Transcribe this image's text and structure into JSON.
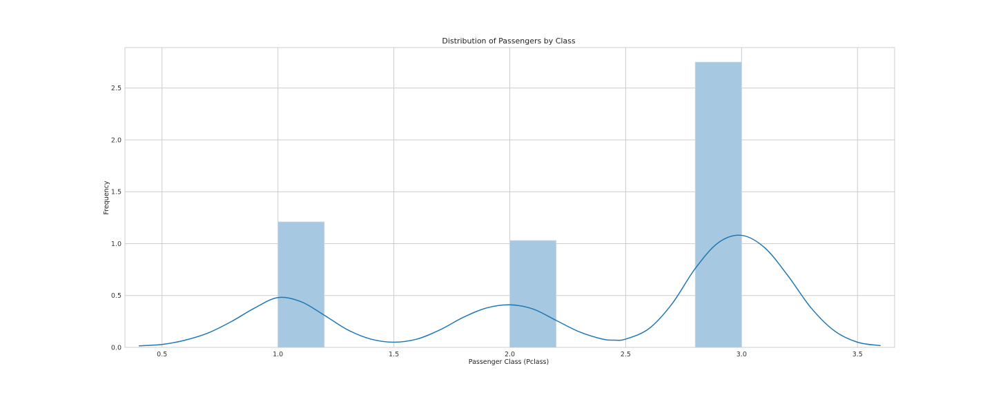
{
  "chart_data": {
    "type": "bar",
    "title": "Distribution of Passengers by Class",
    "xlabel": "Passenger Class (Pclass)",
    "ylabel": "Frequency",
    "xlim": [
      0.34,
      3.66
    ],
    "ylim": [
      0,
      2.89
    ],
    "xticks": [
      0.5,
      1.0,
      1.5,
      2.0,
      2.5,
      3.0,
      3.5
    ],
    "xtick_labels": [
      "0.5",
      "1.0",
      "1.5",
      "2.0",
      "2.5",
      "3.0",
      "3.5"
    ],
    "yticks": [
      0.0,
      0.5,
      1.0,
      1.5,
      2.0,
      2.5
    ],
    "ytick_labels": [
      "0.0",
      "0.5",
      "1.0",
      "1.5",
      "2.0",
      "2.5"
    ],
    "grid": true,
    "histogram": {
      "bins": [
        {
          "start": 1.0,
          "end": 1.2,
          "value": 1.21
        },
        {
          "start": 2.0,
          "end": 2.2,
          "value": 1.03
        },
        {
          "start": 2.8,
          "end": 3.0,
          "value": 2.75
        }
      ],
      "color": "#a6c8e0"
    },
    "kde": {
      "color": "#1f77b4",
      "x": [
        0.4,
        0.5,
        0.6,
        0.7,
        0.8,
        0.9,
        1.0,
        1.1,
        1.2,
        1.3,
        1.4,
        1.5,
        1.6,
        1.7,
        1.8,
        1.9,
        2.0,
        2.1,
        2.2,
        2.3,
        2.4,
        2.45,
        2.5,
        2.6,
        2.7,
        2.8,
        2.9,
        3.0,
        3.1,
        3.2,
        3.3,
        3.4,
        3.5,
        3.6
      ],
      "y": [
        0.015,
        0.028,
        0.07,
        0.14,
        0.25,
        0.38,
        0.48,
        0.44,
        0.31,
        0.17,
        0.08,
        0.05,
        0.08,
        0.17,
        0.29,
        0.38,
        0.41,
        0.37,
        0.26,
        0.15,
        0.08,
        0.07,
        0.08,
        0.18,
        0.42,
        0.76,
        1.01,
        1.08,
        0.96,
        0.69,
        0.38,
        0.16,
        0.05,
        0.017
      ]
    }
  }
}
